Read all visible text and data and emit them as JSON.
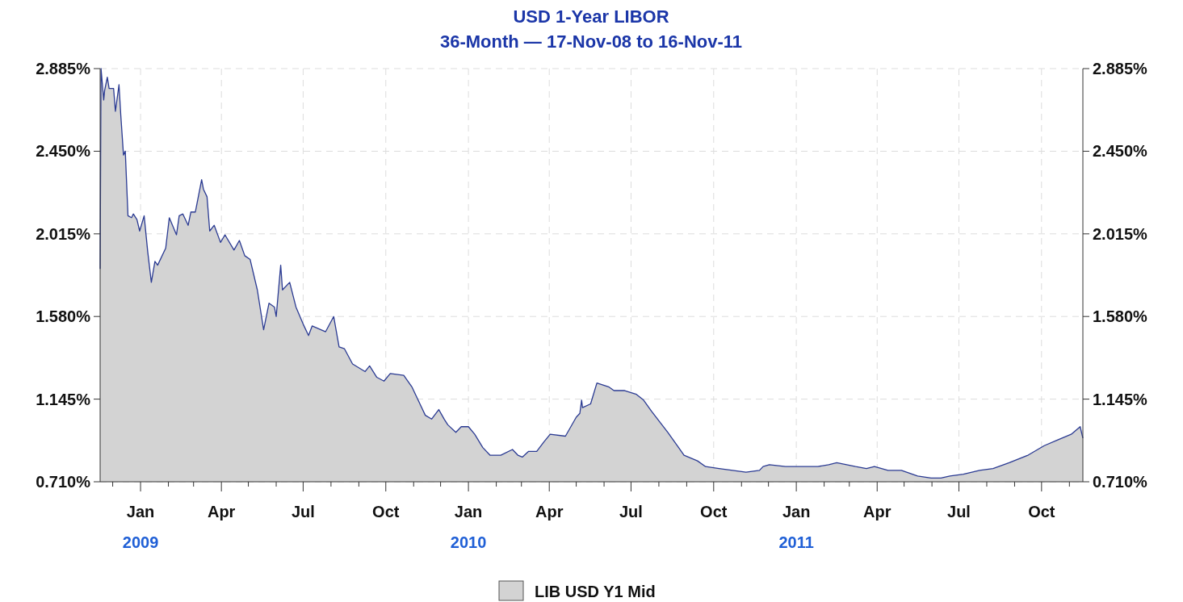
{
  "chart_data": {
    "type": "area",
    "title": "USD 1-Year LIBOR",
    "subtitle": "36-Month — 17-Nov-08 to 16-Nov-11",
    "xlim": [
      "2008-11-17",
      "2011-11-16"
    ],
    "xticks": [
      {
        "value": "2008-12-01",
        "label": null
      },
      {
        "value": "2009-01-01",
        "label": "Jan\n2009"
      },
      {
        "value": "2009-02-01",
        "label": null
      },
      {
        "value": "2009-03-01",
        "label": null
      },
      {
        "value": "2009-04-01",
        "label": "Apr"
      },
      {
        "value": "2009-05-01",
        "label": null
      },
      {
        "value": "2009-06-01",
        "label": null
      },
      {
        "value": "2009-07-01",
        "label": "Jul"
      },
      {
        "value": "2009-08-01",
        "label": null
      },
      {
        "value": "2009-09-01",
        "label": null
      },
      {
        "value": "2009-10-01",
        "label": "Oct"
      },
      {
        "value": "2009-11-01",
        "label": null
      },
      {
        "value": "2009-12-01",
        "label": null
      },
      {
        "value": "2010-01-01",
        "label": "Jan\n2010"
      },
      {
        "value": "2010-02-01",
        "label": null
      },
      {
        "value": "2010-03-01",
        "label": null
      },
      {
        "value": "2010-04-01",
        "label": "Apr"
      },
      {
        "value": "2010-05-01",
        "label": null
      },
      {
        "value": "2010-06-01",
        "label": null
      },
      {
        "value": "2010-07-01",
        "label": "Jul"
      },
      {
        "value": "2010-08-01",
        "label": null
      },
      {
        "value": "2010-09-01",
        "label": null
      },
      {
        "value": "2010-10-01",
        "label": "Oct"
      },
      {
        "value": "2010-11-01",
        "label": null
      },
      {
        "value": "2010-12-01",
        "label": null
      },
      {
        "value": "2011-01-01",
        "label": "Jan\n2011"
      },
      {
        "value": "2011-02-01",
        "label": null
      },
      {
        "value": "2011-03-01",
        "label": null
      },
      {
        "value": "2011-04-01",
        "label": "Apr"
      },
      {
        "value": "2011-05-01",
        "label": null
      },
      {
        "value": "2011-06-01",
        "label": null
      },
      {
        "value": "2011-07-01",
        "label": "Jul"
      },
      {
        "value": "2011-08-01",
        "label": null
      },
      {
        "value": "2011-09-01",
        "label": null
      },
      {
        "value": "2011-10-01",
        "label": "Oct"
      },
      {
        "value": "2011-11-01",
        "label": null
      }
    ],
    "ylim": [
      0.71,
      2.885
    ],
    "yticks": [
      {
        "value": 0.71,
        "label": "0.710%"
      },
      {
        "value": 1.145,
        "label": "1.145%"
      },
      {
        "value": 1.58,
        "label": "1.580%"
      },
      {
        "value": 2.015,
        "label": "2.015%"
      },
      {
        "value": 2.45,
        "label": "2.450%"
      },
      {
        "value": 2.885,
        "label": "2.885%"
      }
    ],
    "y2lim": [
      0.71,
      2.885
    ],
    "y2ticks": [
      {
        "value": 0.71,
        "label": "0.710%"
      },
      {
        "value": 1.145,
        "label": "1.145%"
      },
      {
        "value": 1.58,
        "label": "1.580%"
      },
      {
        "value": 2.015,
        "label": "2.015%"
      },
      {
        "value": 2.45,
        "label": "2.450%"
      },
      {
        "value": 2.885,
        "label": "2.885%"
      }
    ],
    "grid": true,
    "legend": "bottom",
    "x": [
      "2008-11-17",
      "2008-11-18",
      "2008-11-21",
      "2008-11-22",
      "2008-11-25",
      "2008-11-27",
      "2008-12-02",
      "2008-12-04",
      "2008-12-08",
      "2008-12-10",
      "2008-12-13",
      "2008-12-15",
      "2008-12-18",
      "2008-12-22",
      "2008-12-24",
      "2008-12-28",
      "2008-12-31",
      "2009-01-05",
      "2009-01-09",
      "2009-01-13",
      "2009-01-17",
      "2009-01-20",
      "2009-01-29",
      "2009-02-02",
      "2009-02-10",
      "2009-02-13",
      "2009-02-17",
      "2009-02-23",
      "2009-02-26",
      "2009-03-03",
      "2009-03-10",
      "2009-03-12",
      "2009-03-16",
      "2009-03-19",
      "2009-03-24",
      "2009-03-31",
      "2009-04-05",
      "2009-04-15",
      "2009-04-21",
      "2009-04-27",
      "2009-05-03",
      "2009-05-11",
      "2009-05-18",
      "2009-05-24",
      "2009-05-30",
      "2009-06-01",
      "2009-06-06",
      "2009-06-08",
      "2009-06-16",
      "2009-06-23",
      "2009-07-01",
      "2009-07-07",
      "2009-07-11",
      "2009-07-26",
      "2009-08-04",
      "2009-08-10",
      "2009-08-16",
      "2009-08-25",
      "2009-09-08",
      "2009-09-13",
      "2009-09-21",
      "2009-09-29",
      "2009-10-06",
      "2009-10-21",
      "2009-10-30",
      "2009-11-14",
      "2009-11-21",
      "2009-11-29",
      "2009-12-05",
      "2009-12-09",
      "2009-12-18",
      "2009-12-24",
      "2010-01-01",
      "2010-01-08",
      "2010-01-17",
      "2010-01-25",
      "2010-02-06",
      "2010-02-19",
      "2010-02-25",
      "2010-03-02",
      "2010-03-09",
      "2010-03-18",
      "2010-03-26",
      "2010-04-02",
      "2010-04-19",
      "2010-05-01",
      "2010-05-05",
      "2010-05-07",
      "2010-05-08",
      "2010-05-17",
      "2010-05-24",
      "2010-06-06",
      "2010-06-12",
      "2010-06-24",
      "2010-07-07",
      "2010-07-15",
      "2010-07-24",
      "2010-08-11",
      "2010-08-23",
      "2010-08-29",
      "2010-09-13",
      "2010-09-22",
      "2010-10-07",
      "2010-10-22",
      "2010-11-06",
      "2010-11-21",
      "2010-11-25",
      "2010-12-02",
      "2010-12-20",
      "2011-01-04",
      "2011-01-25",
      "2011-02-06",
      "2011-02-15",
      "2011-03-08",
      "2011-03-20",
      "2011-03-29",
      "2011-04-13",
      "2011-04-28",
      "2011-05-16",
      "2011-05-31",
      "2011-06-11",
      "2011-06-21",
      "2011-07-06",
      "2011-07-24",
      "2011-08-08",
      "2011-08-26",
      "2011-09-16",
      "2011-10-04",
      "2011-10-19",
      "2011-11-03",
      "2011-11-13",
      "2011-11-16"
    ],
    "series": [
      {
        "name": "LIB USD Y1 Mid",
        "color": "#d3d3d3",
        "values": [
          1.83,
          2.885,
          2.72,
          2.77,
          2.84,
          2.78,
          2.78,
          2.66,
          2.8,
          2.64,
          2.43,
          2.45,
          2.11,
          2.1,
          2.12,
          2.09,
          2.03,
          2.11,
          1.92,
          1.76,
          1.87,
          1.85,
          1.94,
          2.1,
          2.01,
          2.11,
          2.12,
          2.06,
          2.13,
          2.13,
          2.3,
          2.25,
          2.21,
          2.03,
          2.06,
          1.97,
          2.01,
          1.93,
          1.98,
          1.9,
          1.88,
          1.72,
          1.51,
          1.65,
          1.63,
          1.58,
          1.85,
          1.72,
          1.76,
          1.63,
          1.54,
          1.48,
          1.53,
          1.5,
          1.58,
          1.42,
          1.41,
          1.33,
          1.29,
          1.32,
          1.26,
          1.24,
          1.28,
          1.27,
          1.21,
          1.06,
          1.04,
          1.09,
          1.04,
          1.01,
          0.97,
          1.0,
          1.0,
          0.96,
          0.89,
          0.85,
          0.85,
          0.88,
          0.85,
          0.84,
          0.87,
          0.87,
          0.92,
          0.96,
          0.95,
          1.05,
          1.07,
          1.14,
          1.1,
          1.12,
          1.23,
          1.21,
          1.19,
          1.19,
          1.17,
          1.14,
          1.08,
          0.97,
          0.89,
          0.85,
          0.82,
          0.79,
          0.78,
          0.77,
          0.76,
          0.77,
          0.79,
          0.8,
          0.79,
          0.79,
          0.79,
          0.8,
          0.81,
          0.79,
          0.78,
          0.79,
          0.77,
          0.77,
          0.74,
          0.73,
          0.73,
          0.74,
          0.75,
          0.77,
          0.78,
          0.81,
          0.85,
          0.9,
          0.93,
          0.96,
          1.0,
          0.94
        ]
      }
    ]
  }
}
